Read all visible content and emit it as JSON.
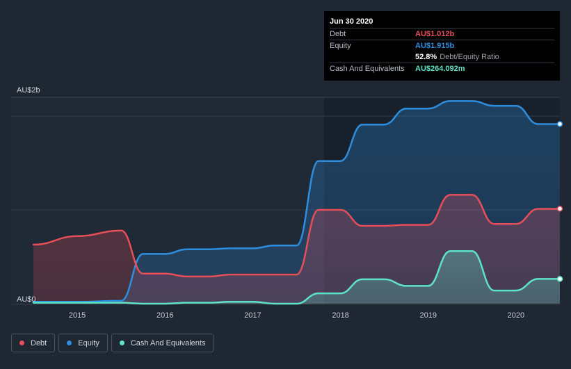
{
  "tooltip": {
    "date": "Jun 30 2020",
    "debt_label": "Debt",
    "debt_value": "AU$1.012b",
    "equity_label": "Equity",
    "equity_value": "AU$1.915b",
    "ratio_value": "52.8%",
    "ratio_label": "Debt/Equity Ratio",
    "cash_label": "Cash And Equivalents",
    "cash_value": "AU$264.092m"
  },
  "legend": [
    {
      "label": "Debt",
      "color": "#e84e5a"
    },
    {
      "label": "Equity",
      "color": "#2d8ee0"
    },
    {
      "label": "Cash And Equivalents",
      "color": "#5fe3c8"
    }
  ],
  "chart_data": {
    "type": "area",
    "y_unit": "AU$ billions",
    "ylim": [
      0,
      2.2
    ],
    "xlim": [
      2014.5,
      2020.5
    ],
    "y_tick_labels": [
      {
        "value": 0,
        "label": "AU$0"
      },
      {
        "value": 2.2,
        "label": "AU$2b"
      }
    ],
    "x_tick_labels": [
      {
        "value": 2015,
        "label": "2015"
      },
      {
        "value": 2016,
        "label": "2016"
      },
      {
        "value": 2017,
        "label": "2017"
      },
      {
        "value": 2018,
        "label": "2018"
      },
      {
        "value": 2019,
        "label": "2019"
      },
      {
        "value": 2020,
        "label": "2020"
      }
    ],
    "grid_values": [
      1.0,
      2.0
    ],
    "series": [
      {
        "name": "Debt",
        "color": "#e84e5a",
        "points": [
          [
            2014.5,
            0.63
          ],
          [
            2015.0,
            0.72
          ],
          [
            2015.5,
            0.78
          ],
          [
            2015.75,
            0.32
          ],
          [
            2016.0,
            0.32
          ],
          [
            2016.25,
            0.29
          ],
          [
            2016.5,
            0.29
          ],
          [
            2016.75,
            0.31
          ],
          [
            2017.0,
            0.31
          ],
          [
            2017.25,
            0.31
          ],
          [
            2017.5,
            0.31
          ],
          [
            2017.75,
            1.0
          ],
          [
            2018.0,
            1.0
          ],
          [
            2018.25,
            0.83
          ],
          [
            2018.5,
            0.83
          ],
          [
            2018.75,
            0.84
          ],
          [
            2019.0,
            0.84
          ],
          [
            2019.25,
            1.16
          ],
          [
            2019.5,
            1.16
          ],
          [
            2019.75,
            0.85
          ],
          [
            2020.0,
            0.85
          ],
          [
            2020.25,
            1.01
          ],
          [
            2020.5,
            1.012
          ]
        ]
      },
      {
        "name": "Equity",
        "color": "#2d8ee0",
        "points": [
          [
            2014.5,
            0.02
          ],
          [
            2015.0,
            0.02
          ],
          [
            2015.5,
            0.03
          ],
          [
            2015.75,
            0.53
          ],
          [
            2016.0,
            0.53
          ],
          [
            2016.25,
            0.58
          ],
          [
            2016.5,
            0.58
          ],
          [
            2016.75,
            0.59
          ],
          [
            2017.0,
            0.59
          ],
          [
            2017.25,
            0.62
          ],
          [
            2017.5,
            0.62
          ],
          [
            2017.75,
            1.52
          ],
          [
            2018.0,
            1.52
          ],
          [
            2018.25,
            1.91
          ],
          [
            2018.5,
            1.91
          ],
          [
            2018.75,
            2.08
          ],
          [
            2019.0,
            2.08
          ],
          [
            2019.25,
            2.16
          ],
          [
            2019.5,
            2.16
          ],
          [
            2019.75,
            2.11
          ],
          [
            2020.0,
            2.11
          ],
          [
            2020.25,
            1.915
          ],
          [
            2020.5,
            1.915
          ]
        ]
      },
      {
        "name": "Cash And Equivalents",
        "color": "#5fe3c8",
        "points": [
          [
            2014.5,
            0.01
          ],
          [
            2015.0,
            0.01
          ],
          [
            2015.5,
            0.01
          ],
          [
            2015.75,
            0.0
          ],
          [
            2016.0,
            0.0
          ],
          [
            2016.25,
            0.01
          ],
          [
            2016.5,
            0.01
          ],
          [
            2016.75,
            0.02
          ],
          [
            2017.0,
            0.02
          ],
          [
            2017.25,
            0.0
          ],
          [
            2017.5,
            0.0
          ],
          [
            2017.75,
            0.11
          ],
          [
            2018.0,
            0.11
          ],
          [
            2018.25,
            0.26
          ],
          [
            2018.5,
            0.26
          ],
          [
            2018.75,
            0.19
          ],
          [
            2019.0,
            0.19
          ],
          [
            2019.25,
            0.56
          ],
          [
            2019.5,
            0.56
          ],
          [
            2019.75,
            0.14
          ],
          [
            2020.0,
            0.14
          ],
          [
            2020.25,
            0.264
          ],
          [
            2020.5,
            0.264
          ]
        ]
      }
    ]
  }
}
